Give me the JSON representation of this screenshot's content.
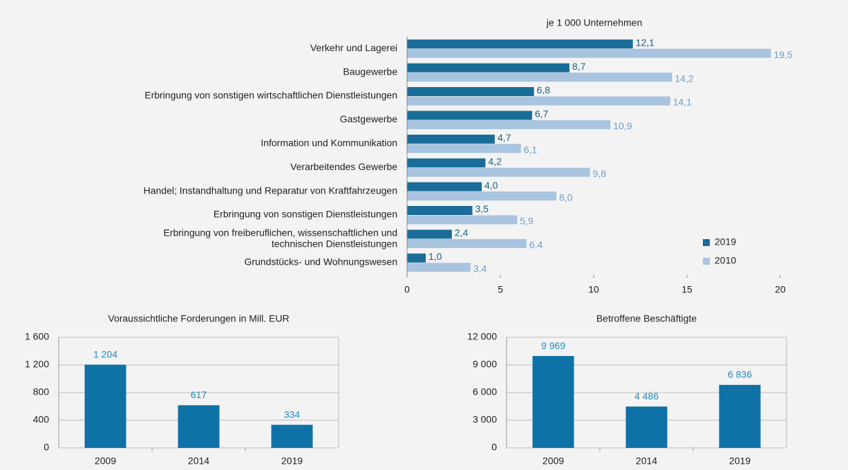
{
  "chart_data": [
    {
      "type": "hbar",
      "title": "je 1 000 Unternehmen",
      "categories": [
        "Verkehr und Lagerei",
        "Baugewerbe",
        "Erbringung von sonstigen wirtschaftlichen Dienstleistungen",
        "Gastgewerbe",
        "Information und Kommunikation",
        "Verarbeitendes Gewerbe",
        "Handel; Instandhaltung und Reparatur von Kraftfahrzeugen",
        "Erbringung von sonstigen Dienstleistungen",
        "Erbringung von freiberuflichen, wissenschaftlichen und\ntechnischen Dienstleistungen",
        "Grundstücks- und Wohnungswesen"
      ],
      "series": [
        {
          "name": "2019",
          "color": "#1a6d98",
          "label_color": "#1b5f86",
          "values": [
            12.1,
            8.7,
            6.8,
            6.7,
            4.7,
            4.2,
            4.0,
            3.5,
            2.4,
            1.0
          ],
          "value_labels": [
            "12,1",
            "8,7",
            "6,8",
            "6,7",
            "4,7",
            "4,2",
            "4,0",
            "3,5",
            "2,4",
            "1,0"
          ]
        },
        {
          "name": "2010",
          "color": "#a9c4df",
          "label_color": "#6a9fcb",
          "values": [
            19.5,
            14.2,
            14.1,
            10.9,
            6.1,
            9.8,
            8.0,
            5.9,
            6.4,
            3.4
          ],
          "value_labels": [
            "19,5",
            "14,2",
            "14,1",
            "10,9",
            "6,1",
            "9,8",
            "8,0",
            "5,9",
            "6,4",
            "3,4"
          ]
        }
      ],
      "xlim": [
        0,
        20
      ],
      "xticks": [
        0,
        5,
        10,
        15,
        20
      ],
      "legend": "bottom-right"
    },
    {
      "type": "bar",
      "title": "Voraussichtliche Forderungen in Mill. EUR",
      "categories": [
        "2009",
        "2014",
        "2019"
      ],
      "values": [
        1204,
        617,
        334
      ],
      "value_labels": [
        "1 204",
        "617",
        "334"
      ],
      "color": "#0f72a6",
      "label_color": "#1f8cc4",
      "ylim": [
        0,
        1600
      ],
      "yticks": [
        0,
        400,
        800,
        {
          "value": 1200,
          "label": "1 200"
        },
        {
          "value": 1600,
          "label": "1 600"
        }
      ],
      "grid": true
    },
    {
      "type": "bar",
      "title": "Betroffene Beschäftigte",
      "categories": [
        "2009",
        "2014",
        "2019"
      ],
      "values": [
        9969,
        4486,
        6836
      ],
      "value_labels": [
        "9 969",
        "4 486",
        "6 836"
      ],
      "color": "#0f72a6",
      "label_color": "#1f8cc4",
      "ylim": [
        0,
        12000
      ],
      "yticks": [
        0,
        {
          "value": 3000,
          "label": "3 000"
        },
        {
          "value": 6000,
          "label": "6 000"
        },
        {
          "value": 9000,
          "label": "9 000"
        },
        {
          "value": 12000,
          "label": "12 000"
        }
      ],
      "grid": true
    }
  ]
}
